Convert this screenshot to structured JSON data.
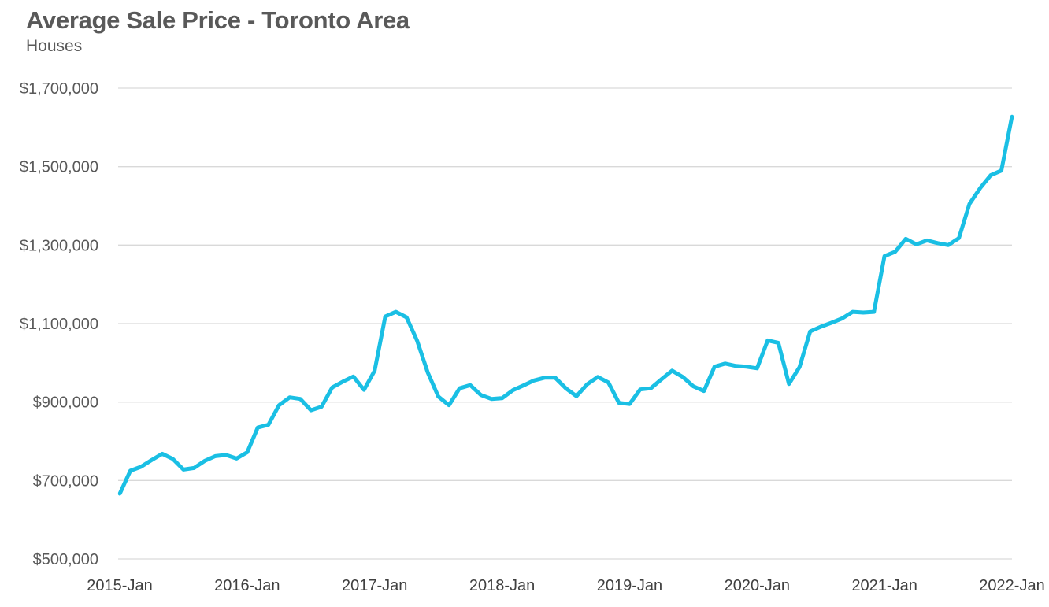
{
  "chart_data": {
    "type": "line",
    "title": "Average Sale Price - Toronto Area",
    "subtitle": "Houses",
    "xlabel": "",
    "ylabel": "",
    "ylim": [
      500000,
      1700000
    ],
    "yticks": [
      500000,
      700000,
      900000,
      1100000,
      1300000,
      1500000,
      1700000
    ],
    "ytick_labels": [
      "$500,000",
      "$700,000",
      "$900,000",
      "$1,100,000",
      "$1,300,000",
      "$1,500,000",
      "$1,700,000"
    ],
    "xtick_labels": [
      "2015-Jan",
      "2016-Jan",
      "2017-Jan",
      "2018-Jan",
      "2019-Jan",
      "2020-Jan",
      "2021-Jan",
      "2022-Jan"
    ],
    "grid": true,
    "line_color": "#1ABFE4",
    "series": [
      {
        "name": "Houses",
        "start": "2015-Jan",
        "frequency": "monthly",
        "values": [
          666000,
          725000,
          735000,
          752000,
          768000,
          755000,
          728000,
          732000,
          750000,
          762000,
          765000,
          756000,
          772000,
          835000,
          842000,
          892000,
          912000,
          908000,
          879000,
          888000,
          937000,
          952000,
          965000,
          931000,
          980000,
          1118000,
          1130000,
          1116000,
          1056000,
          975000,
          914000,
          892000,
          935000,
          943000,
          918000,
          908000,
          910000,
          930000,
          942000,
          955000,
          962000,
          962000,
          935000,
          915000,
          945000,
          964000,
          950000,
          898000,
          895000,
          932000,
          935000,
          958000,
          980000,
          964000,
          940000,
          928000,
          990000,
          998000,
          992000,
          990000,
          986000,
          1057000,
          1051000,
          946000,
          989000,
          1080000,
          1092000,
          1102000,
          1113000,
          1130000,
          1128000,
          1130000,
          1272000,
          1283000,
          1316000,
          1302000,
          1312000,
          1305000,
          1300000,
          1318000,
          1405000,
          1445000,
          1478000,
          1490000,
          1628000
        ]
      }
    ]
  }
}
